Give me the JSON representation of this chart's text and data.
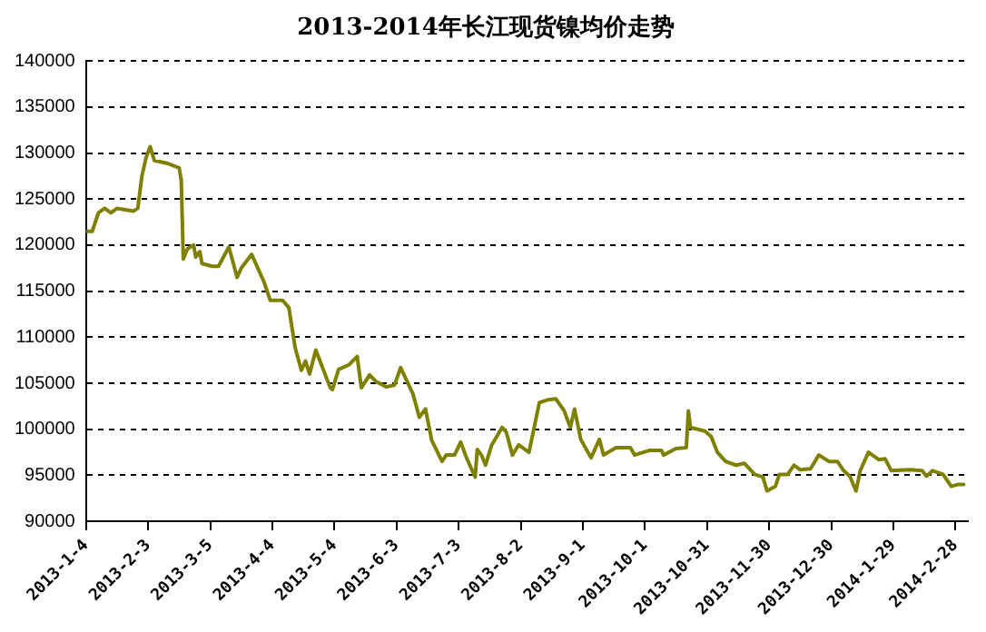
{
  "chart_data": {
    "type": "line",
    "title": "2013-2014年长江现货镍均价走势",
    "x": [
      "2013-01-04",
      "2013-01-07",
      "2013-01-10",
      "2013-01-13",
      "2013-01-16",
      "2013-01-19",
      "2013-01-27",
      "2013-01-29",
      "2013-01-31",
      "2013-02-02",
      "2013-02-04",
      "2013-02-06",
      "2013-02-12",
      "2013-02-18",
      "2013-02-19",
      "2013-02-20",
      "2013-02-22",
      "2013-02-25",
      "2013-02-26",
      "2013-02-28",
      "2013-03-01",
      "2013-03-06",
      "2013-03-09",
      "2013-03-14",
      "2013-03-18",
      "2013-03-20",
      "2013-03-25",
      "2013-03-31",
      "2013-04-03",
      "2013-04-09",
      "2013-04-12",
      "2013-04-15",
      "2013-04-18",
      "2013-04-20",
      "2013-04-22",
      "2013-04-25",
      "2013-05-02",
      "2013-05-03",
      "2013-05-06",
      "2013-05-11",
      "2013-05-15",
      "2013-05-17",
      "2013-05-21",
      "2013-05-24",
      "2013-05-29",
      "2013-06-02",
      "2013-06-05",
      "2013-06-11",
      "2013-06-14",
      "2013-06-17",
      "2013-06-20",
      "2013-06-25",
      "2013-06-27",
      "2013-07-01",
      "2013-07-04",
      "2013-07-07",
      "2013-07-11",
      "2013-07-12",
      "2013-07-14",
      "2013-07-16",
      "2013-07-19",
      "2013-07-24",
      "2013-07-26",
      "2013-07-29",
      "2013-08-01",
      "2013-08-06",
      "2013-08-11",
      "2013-08-15",
      "2013-08-19",
      "2013-08-23",
      "2013-08-26",
      "2013-08-28",
      "2013-08-31",
      "2013-09-05",
      "2013-09-09",
      "2013-09-11",
      "2013-09-17",
      "2013-09-24",
      "2013-09-26",
      "2013-10-03",
      "2013-10-09",
      "2013-10-10",
      "2013-10-16",
      "2013-10-21",
      "2013-10-22",
      "2013-10-23",
      "2013-10-30",
      "2013-11-02",
      "2013-11-05",
      "2013-11-09",
      "2013-11-14",
      "2013-11-18",
      "2013-11-23",
      "2013-11-27",
      "2013-11-29",
      "2013-12-03",
      "2013-12-05",
      "2013-12-09",
      "2013-12-12",
      "2013-12-15",
      "2013-12-20",
      "2013-12-24",
      "2013-12-29",
      "2014-01-02",
      "2014-01-05",
      "2014-01-08",
      "2014-01-11",
      "2014-01-13",
      "2014-01-17",
      "2014-01-22",
      "2014-01-25",
      "2014-01-28",
      "2014-02-06",
      "2014-02-12",
      "2014-02-14",
      "2014-02-17",
      "2014-02-22",
      "2014-02-26",
      "2014-03-01",
      "2014-03-04"
    ],
    "series": [
      {
        "color": "#808000",
        "values": [
          121500,
          121500,
          123500,
          124000,
          123500,
          124000,
          123700,
          124000,
          127500,
          129500,
          130700,
          129200,
          128900,
          128400,
          127000,
          118500,
          119600,
          120000,
          118700,
          119300,
          118000,
          117700,
          117700,
          119800,
          116500,
          117500,
          119000,
          116000,
          114000,
          114000,
          113200,
          108900,
          106400,
          107400,
          106000,
          108600,
          104500,
          104300,
          106500,
          107000,
          107900,
          104500,
          105900,
          105200,
          104600,
          104800,
          106700,
          103800,
          101300,
          102200,
          98800,
          96500,
          97200,
          97200,
          98600,
          96800,
          94800,
          97800,
          97200,
          96100,
          98300,
          100200,
          99700,
          97200,
          98300,
          97500,
          102900,
          103200,
          103300,
          102000,
          100200,
          102200,
          98900,
          96900,
          98900,
          97200,
          98000,
          98000,
          97200,
          97700,
          97700,
          97200,
          97900,
          98000,
          102000,
          100200,
          99800,
          99200,
          97500,
          96500,
          96100,
          96300,
          95100,
          94800,
          93300,
          93800,
          95100,
          95100,
          96100,
          95600,
          95700,
          97200,
          96500,
          96500,
          95500,
          94900,
          93300,
          95500,
          97500,
          96700,
          96800,
          95500,
          95600,
          95500,
          94900,
          95500,
          95100,
          93800,
          94000,
          94000
        ]
      }
    ],
    "xlim": [
      "2013-01-04",
      "2014-03-06"
    ],
    "xticks": [
      {
        "value": "2013-01-04",
        "label": "2013-1-4"
      },
      {
        "value": "2013-02-03",
        "label": "2013-2-3"
      },
      {
        "value": "2013-03-05",
        "label": "2013-3-5"
      },
      {
        "value": "2013-04-04",
        "label": "2013-4-4"
      },
      {
        "value": "2013-05-04",
        "label": "2013-5-4"
      },
      {
        "value": "2013-06-03",
        "label": "2013-6-3"
      },
      {
        "value": "2013-07-03",
        "label": "2013-7-3"
      },
      {
        "value": "2013-08-02",
        "label": "2013-8-2"
      },
      {
        "value": "2013-09-01",
        "label": "2013-9-1"
      },
      {
        "value": "2013-10-01",
        "label": "2013-10-1"
      },
      {
        "value": "2013-10-31",
        "label": "2013-10-31"
      },
      {
        "value": "2013-11-30",
        "label": "2013-11-30"
      },
      {
        "value": "2013-12-30",
        "label": "2013-12-30"
      },
      {
        "value": "2014-01-29",
        "label": "2014-1-29"
      },
      {
        "value": "2014-02-28",
        "label": "2014-2-28"
      }
    ],
    "ylim": [
      90000,
      140000
    ],
    "yticks": [
      90000,
      95000,
      100000,
      105000,
      110000,
      115000,
      120000,
      125000,
      130000,
      135000,
      140000
    ],
    "grid": "y",
    "legend": false,
    "marker": "none",
    "line_style": "solid"
  }
}
